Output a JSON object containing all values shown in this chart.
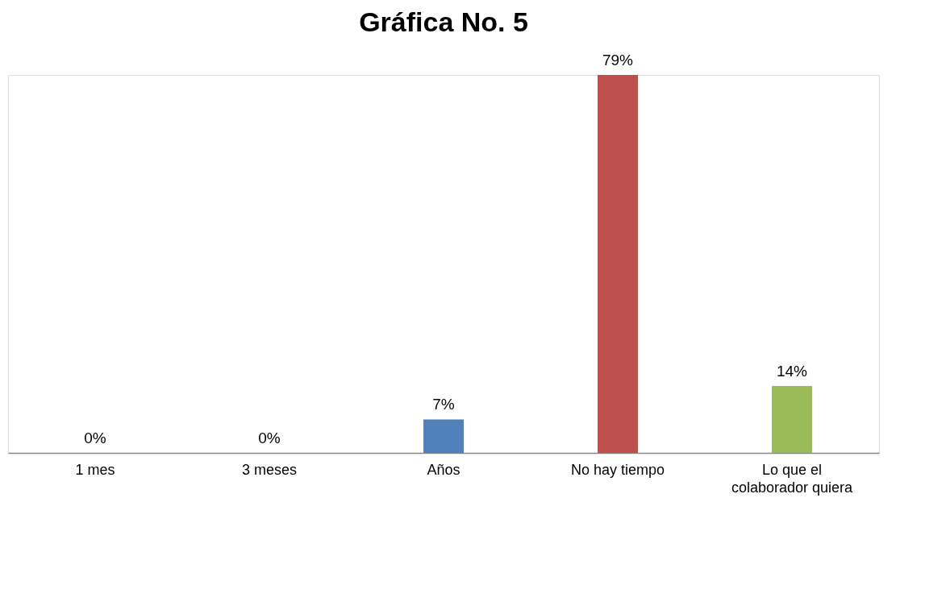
{
  "chart_data": {
    "type": "bar",
    "title": "Gráfica No. 5",
    "categories": [
      "1 mes",
      "3 meses",
      "Años",
      "No hay tiempo",
      "Lo que el colaborador quiera"
    ],
    "values": [
      0,
      0,
      7,
      79,
      14
    ],
    "colors": [
      "#4f81bd",
      "#4f81bd",
      "#4f81bd",
      "#c0504d",
      "#9bbb59"
    ],
    "value_labels": [
      "0%",
      "0%",
      "7%",
      "79%",
      "14%"
    ],
    "tick_labels": "x",
    "grid": false
  }
}
